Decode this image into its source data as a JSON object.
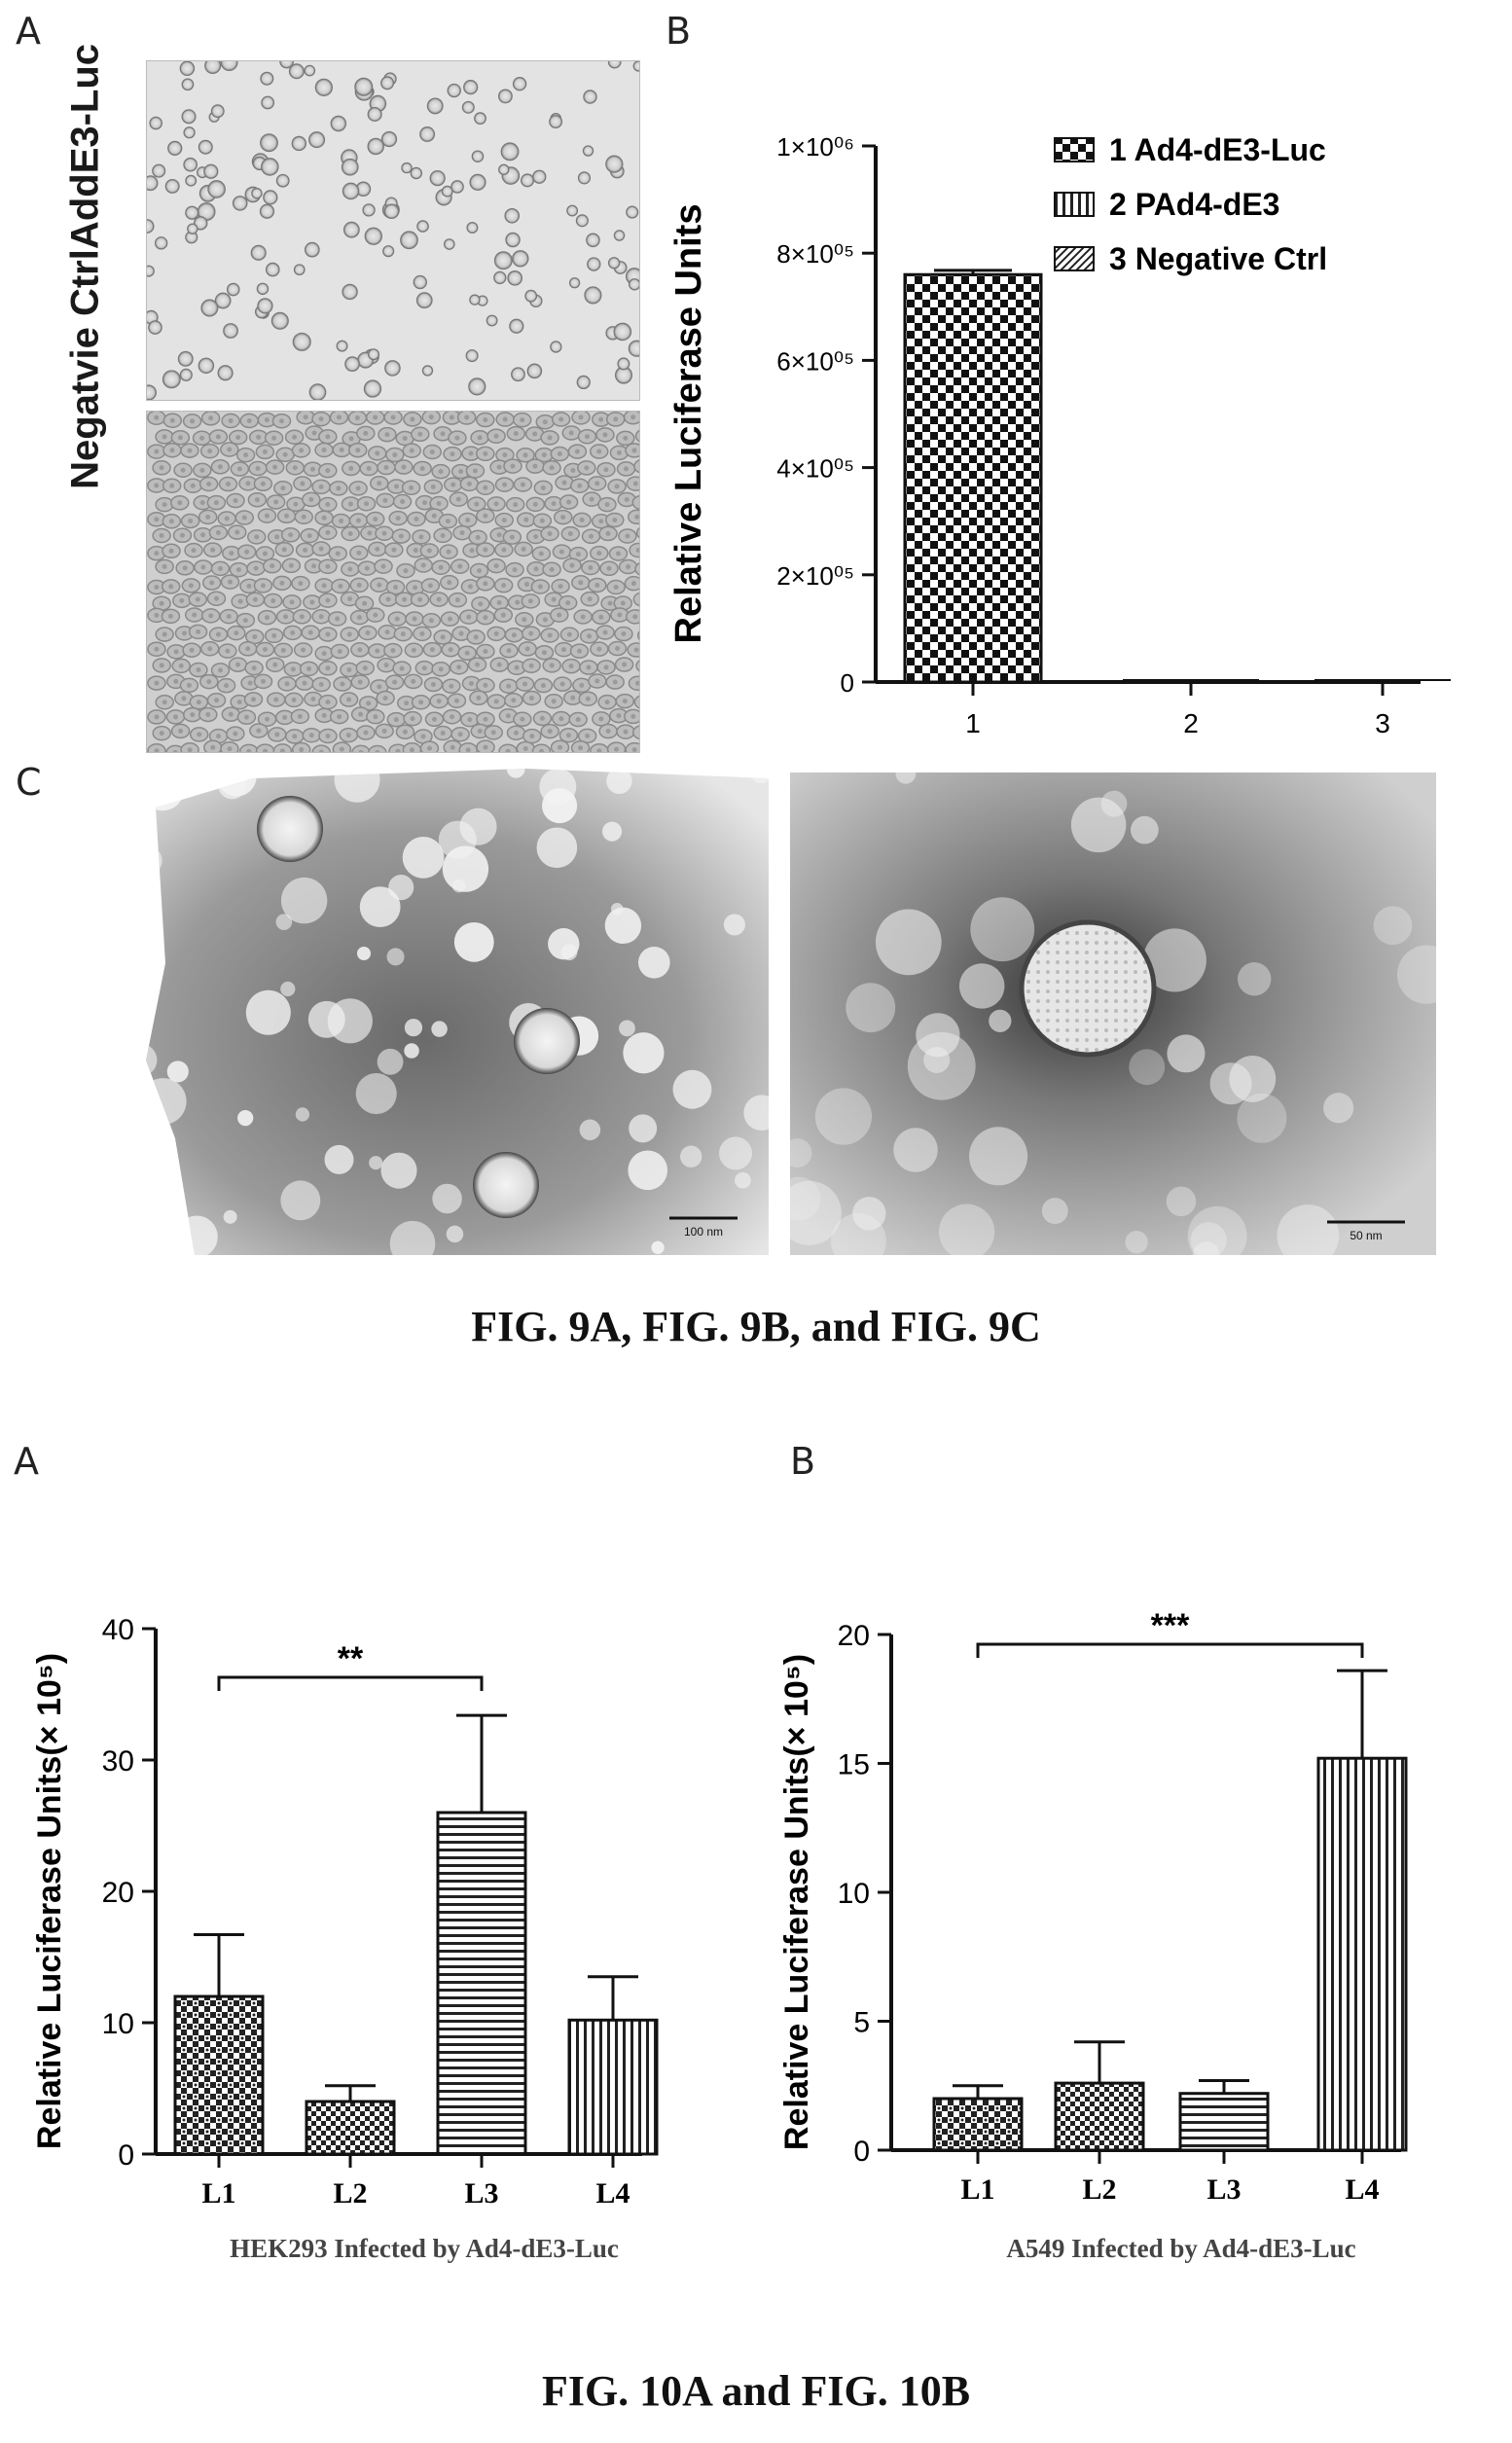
{
  "fig9": {
    "panel_a_letter": "A",
    "panel_b_letter": "B",
    "panel_c_letter": "C",
    "panel_a_top_label": "AddE3-Luc",
    "panel_a_bottom_label": "Negatvie Ctrl",
    "scale_bar_1": "100 nm",
    "scale_bar_2": "50 nm",
    "caption": "FIG. 9A, FIG. 9B, and FIG. 9C"
  },
  "fig10": {
    "panel_a_letter": "A",
    "panel_b_letter": "B",
    "caption": "FIG. 10A and FIG. 10B"
  },
  "chart_data": [
    {
      "id": "fig9b",
      "type": "bar",
      "categories": [
        "1",
        "2",
        "3"
      ],
      "values": [
        760000,
        0,
        0
      ],
      "errors": [
        8000,
        0,
        0
      ],
      "ylabel": "Relative Luciferase Units",
      "xlabel": "",
      "ylim": [
        0,
        1000000
      ],
      "yticks": [
        "0",
        "2×10⁰⁵",
        "4×10⁰⁵",
        "6×10⁰⁵",
        "8×10⁰⁵",
        "1×10⁰⁶"
      ],
      "ytick_values": [
        0,
        200000,
        400000,
        600000,
        800000,
        1000000
      ],
      "legend": [
        "1 Ad4-dE3-Luc",
        "2 PAd4-dE3",
        "3 Negative Ctrl"
      ],
      "legend_position": "top-right"
    },
    {
      "id": "fig10a",
      "type": "bar",
      "categories": [
        "L1",
        "L2",
        "L3",
        "L4"
      ],
      "values": [
        12,
        4,
        26,
        10.2
      ],
      "errors": [
        4.7,
        1.2,
        7.4,
        3.3
      ],
      "ylabel": "Relative Luciferase Units(× 10⁵)",
      "xlabel": "HEK293 Infected by Ad4-dE3-Luc",
      "ylim": [
        0,
        40
      ],
      "yticks": [
        0,
        10,
        20,
        30,
        40
      ],
      "significance": {
        "from": "L1",
        "to": "L3",
        "label": "**"
      }
    },
    {
      "id": "fig10b",
      "type": "bar",
      "categories": [
        "L1",
        "L2",
        "L3",
        "L4"
      ],
      "values": [
        2,
        2.6,
        2.2,
        15.2
      ],
      "errors": [
        0.5,
        1.6,
        0.5,
        3.4
      ],
      "ylabel": "Relative Luciferase Units(× 10⁵)",
      "xlabel": "A549 Infected by Ad4-dE3-Luc",
      "ylim": [
        0,
        20
      ],
      "yticks": [
        0,
        5,
        10,
        15,
        20
      ],
      "significance": {
        "from": "L1",
        "to": "L4",
        "label": "***"
      }
    }
  ]
}
